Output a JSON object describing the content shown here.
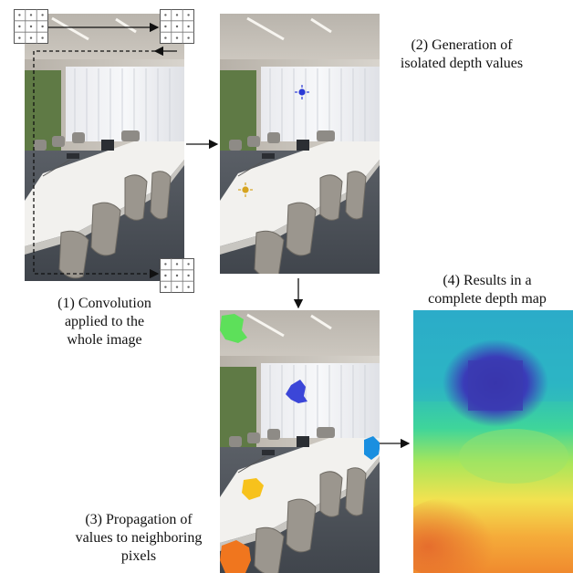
{
  "steps": [
    {
      "label_lines": [
        "(1) Convolution",
        "applied to the",
        "whole image"
      ]
    },
    {
      "label_lines": [
        "(2) Generation of",
        "isolated depth values"
      ]
    },
    {
      "label_lines": [
        "(3) Propagation of",
        "values to neighboring",
        "pixels"
      ]
    },
    {
      "label_lines": [
        "(4) Results in a",
        "complete depth map"
      ]
    }
  ],
  "colors": {
    "arrow": "#111111",
    "kernel_grid": "#555555",
    "blob_green": "#5de05a",
    "blob_blue": "#3b46d8",
    "blob_cyan": "#1a8fe0",
    "blob_yellow": "#f7c21c",
    "blob_orange": "#f0761e",
    "marker_blue": "#2b3ad6",
    "marker_yellow": "#d6a420",
    "depth_far": "#3a2fa8",
    "depth_mid": "#22c8b8",
    "depth_near": "#f07a2a"
  },
  "icons": [
    "kernel-grid-icon",
    "arrow-right-icon",
    "arrow-down-icon"
  ]
}
